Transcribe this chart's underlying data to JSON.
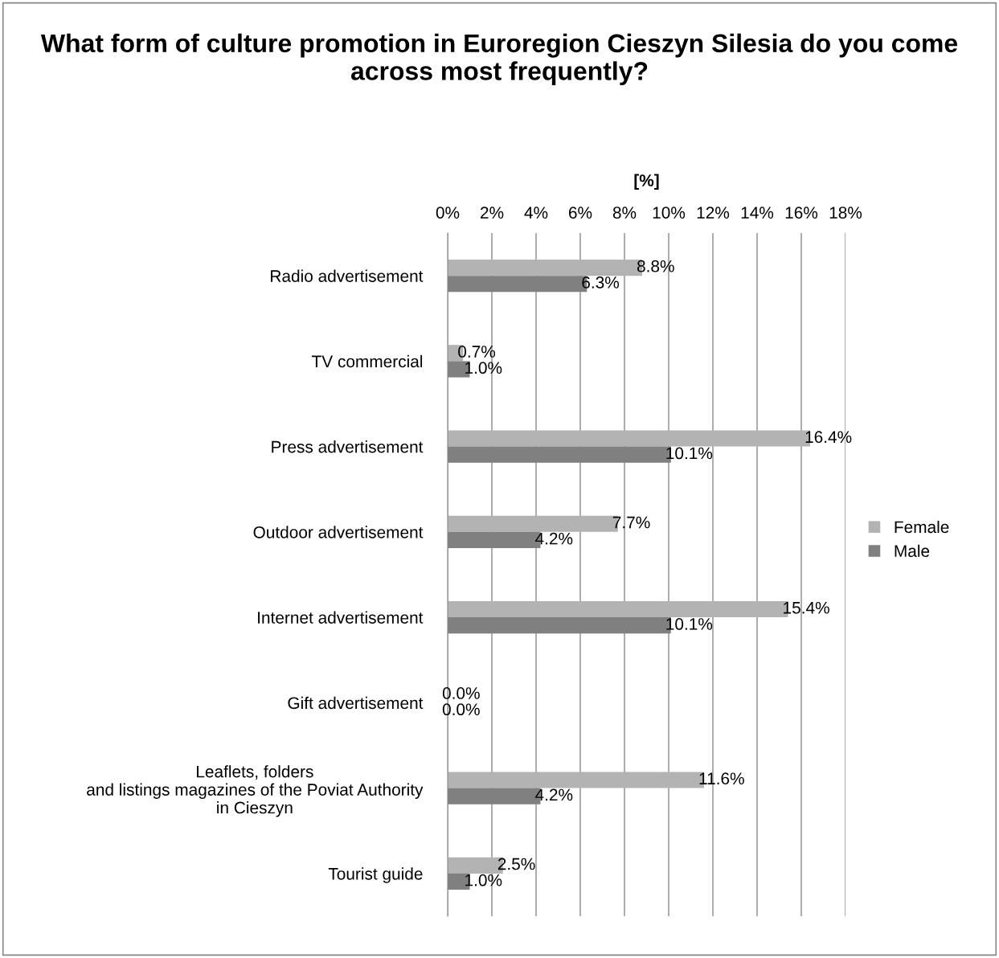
{
  "chart_data": {
    "type": "bar",
    "orientation": "horizontal",
    "title": "What form of culture promotion in Euroregion Cieszyn Silesia do you come across most frequently?",
    "xlabel": "[%]",
    "categories": [
      "Radio advertisement",
      "TV commercial",
      "Press advertisement",
      "Outdoor advertisement",
      "Internet advertisement",
      "Gift advertisement",
      "Leaflets, folders\nand listings magazines of the Poviat Authority\nin Cieszyn",
      "Tourist guide"
    ],
    "series": [
      {
        "name": "Female",
        "color": "#b3b3b3",
        "values": [
          8.8,
          0.7,
          16.4,
          7.7,
          15.4,
          0.0,
          11.6,
          2.5
        ],
        "value_labels": [
          "8.8%",
          "0.7%",
          "16.4%",
          "7.7%",
          "15.4%",
          "0.0%",
          "11.6%",
          "2.5%"
        ]
      },
      {
        "name": "Male",
        "color": "#808080",
        "values": [
          6.3,
          1.0,
          10.1,
          4.2,
          10.1,
          0.0,
          4.2,
          1.0
        ],
        "value_labels": [
          "6.3%",
          "1.0%",
          "10.1%",
          "4.2%",
          "10.1%",
          "0.0%",
          "4.2%",
          "1.0%"
        ]
      }
    ],
    "xlim": [
      0,
      18
    ],
    "xticks": [
      {
        "value": 0,
        "label": "0%"
      },
      {
        "value": 2,
        "label": "2%"
      },
      {
        "value": 4,
        "label": "4%"
      },
      {
        "value": 6,
        "label": "6%"
      },
      {
        "value": 8,
        "label": "8%"
      },
      {
        "value": 10,
        "label": "10%"
      },
      {
        "value": 12,
        "label": "12%"
      },
      {
        "value": 14,
        "label": "14%"
      },
      {
        "value": 16,
        "label": "16%"
      },
      {
        "value": 18,
        "label": "18%"
      }
    ],
    "grid": "x",
    "legend": "right"
  }
}
